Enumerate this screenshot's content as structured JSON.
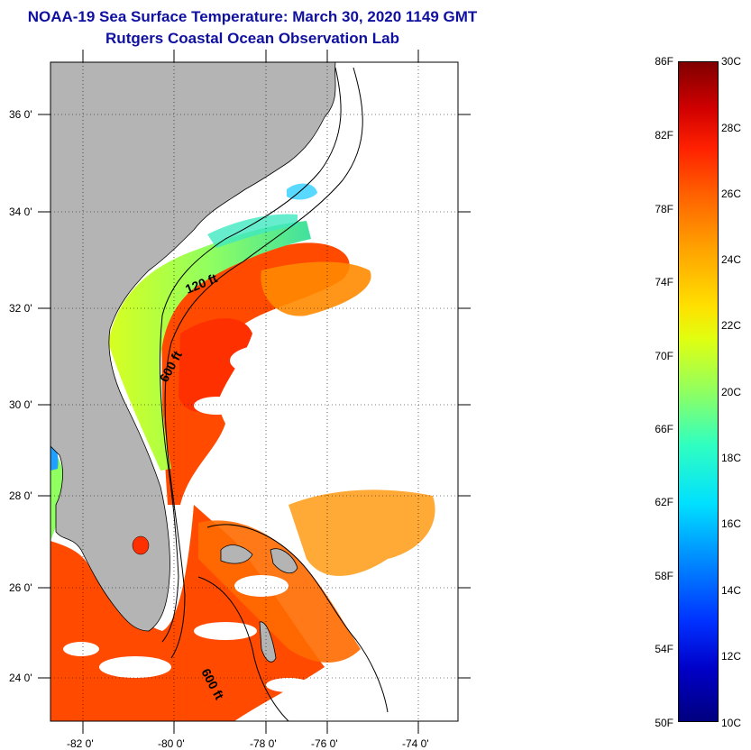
{
  "title": {
    "line1": "NOAA-19 Sea Surface Temperature:  March 30, 2020 1149 GMT",
    "line2": "Rutgers Coastal Ocean Observation Lab"
  },
  "map": {
    "lat_ticks": [
      "36 0'",
      "34 0'",
      "32 0'",
      "30 0'",
      "28 0'",
      "26 0'",
      "24 0'"
    ],
    "lon_ticks": [
      "-82 0'",
      "-80 0'",
      "-78 0'",
      "-76 0'",
      "-74 0'"
    ],
    "contour_labels": [
      "120 ft",
      "600 ft",
      "600 ft"
    ],
    "colors": {
      "land": "#b4b4b4",
      "cloud": "#ffffff",
      "warm": "#ff4000",
      "cool": "#c8ff30"
    }
  },
  "colorbar": {
    "fahrenheit": [
      "86F",
      "82F",
      "78F",
      "74F",
      "70F",
      "66F",
      "62F",
      "58F",
      "54F",
      "50F"
    ],
    "celsius": [
      "30C",
      "28C",
      "26C",
      "24C",
      "22C",
      "20C",
      "18C",
      "16C",
      "14C",
      "12C",
      "10C"
    ]
  }
}
